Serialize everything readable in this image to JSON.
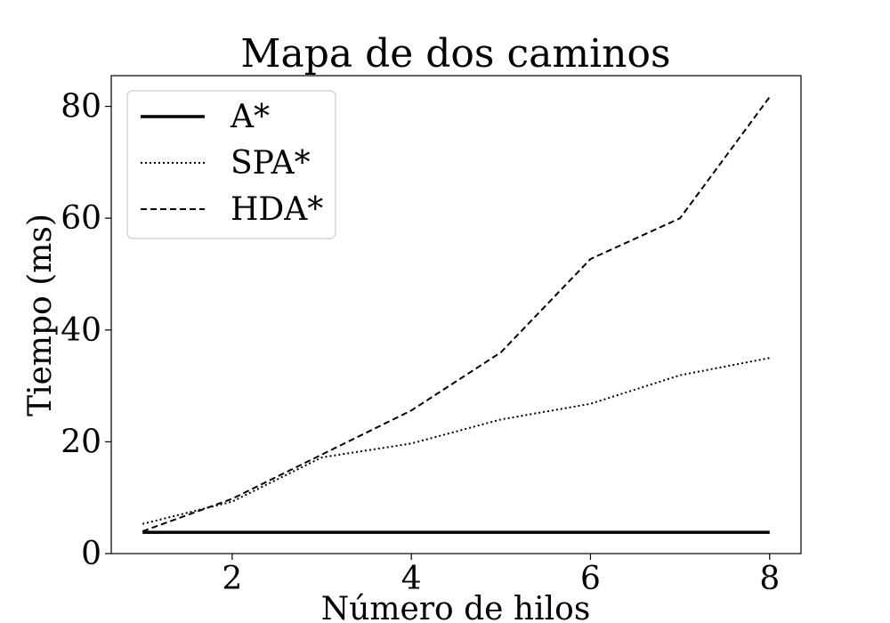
{
  "chart_data": {
    "type": "line",
    "title": "Mapa de dos caminos",
    "xlabel": "Número de hilos",
    "ylabel": "Tiempo (ms)",
    "xlim": [
      0.65,
      8.35
    ],
    "ylim": [
      0,
      85.5
    ],
    "x_ticks": [
      2,
      4,
      6,
      8
    ],
    "y_ticks": [
      0,
      20,
      40,
      60,
      80
    ],
    "grid": false,
    "legend_position": "top-left",
    "x": [
      1,
      2,
      3,
      4,
      5,
      6,
      7,
      8
    ],
    "series": [
      {
        "name": "A*",
        "style": "solid",
        "color": "#000000",
        "values": [
          3.8,
          3.8,
          3.8,
          3.8,
          3.8,
          3.8,
          3.8,
          3.8
        ]
      },
      {
        "name": "SPA*",
        "style": "dotted",
        "color": "#000000",
        "values": [
          5.3,
          9.3,
          17.2,
          19.7,
          24.0,
          26.8,
          31.9,
          35.0
        ]
      },
      {
        "name": "HDA*",
        "style": "dashed",
        "color": "#000000",
        "values": [
          4.0,
          9.8,
          17.7,
          25.6,
          36.0,
          52.7,
          60.0,
          81.7
        ]
      }
    ]
  }
}
